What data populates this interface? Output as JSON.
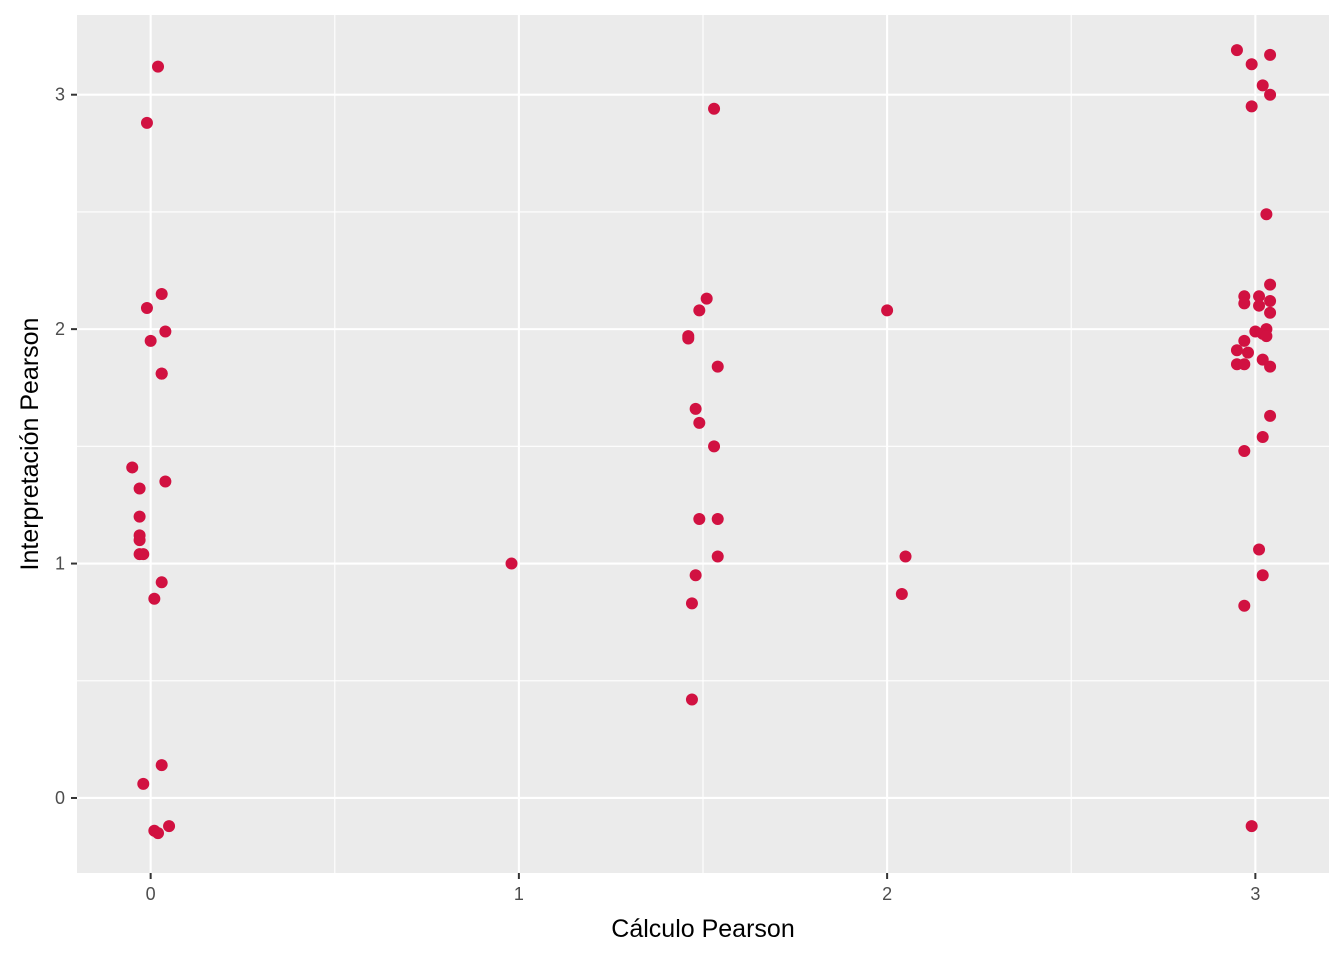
{
  "chart_data": {
    "type": "scatter",
    "title": "",
    "xlabel": "Cálculo Pearson",
    "ylabel": "Interpretación Pearson",
    "xlim": [
      -0.2,
      3.2
    ],
    "ylim": [
      -0.32,
      3.34
    ],
    "x_ticks": [
      0,
      1,
      2,
      3
    ],
    "x_tick_labels": [
      "0",
      "1",
      "2",
      "3"
    ],
    "y_ticks": [
      0,
      1,
      2,
      3
    ],
    "y_tick_labels": [
      "0",
      "1",
      "2",
      "3"
    ],
    "grid": true,
    "point_color": "#D11141",
    "panel_background": "#EBEBEB",
    "grid_color": "#FFFFFF",
    "points": [
      {
        "x": 0.02,
        "y": 3.12
      },
      {
        "x": -0.01,
        "y": 2.88
      },
      {
        "x": 0.03,
        "y": 2.15
      },
      {
        "x": -0.01,
        "y": 2.09
      },
      {
        "x": 0.04,
        "y": 1.99
      },
      {
        "x": 0.0,
        "y": 1.95
      },
      {
        "x": 0.03,
        "y": 1.81
      },
      {
        "x": 0.03,
        "y": 1.81
      },
      {
        "x": -0.05,
        "y": 1.41
      },
      {
        "x": 0.04,
        "y": 1.35
      },
      {
        "x": -0.03,
        "y": 1.32
      },
      {
        "x": -0.03,
        "y": 1.2
      },
      {
        "x": -0.03,
        "y": 1.12
      },
      {
        "x": -0.03,
        "y": 1.1
      },
      {
        "x": -0.03,
        "y": 1.04
      },
      {
        "x": -0.02,
        "y": 1.04
      },
      {
        "x": 0.03,
        "y": 0.92
      },
      {
        "x": 0.01,
        "y": 0.85
      },
      {
        "x": 0.03,
        "y": 0.14
      },
      {
        "x": -0.02,
        "y": 0.06
      },
      {
        "x": 0.05,
        "y": -0.12
      },
      {
        "x": 0.01,
        "y": -0.14
      },
      {
        "x": 0.02,
        "y": -0.15
      },
      {
        "x": 0.98,
        "y": 1.0
      },
      {
        "x": 1.53,
        "y": 2.94
      },
      {
        "x": 1.51,
        "y": 2.13
      },
      {
        "x": 1.49,
        "y": 2.08
      },
      {
        "x": 1.46,
        "y": 1.97
      },
      {
        "x": 1.46,
        "y": 1.96
      },
      {
        "x": 1.54,
        "y": 1.84
      },
      {
        "x": 1.48,
        "y": 1.66
      },
      {
        "x": 1.49,
        "y": 1.6
      },
      {
        "x": 1.53,
        "y": 1.5
      },
      {
        "x": 1.49,
        "y": 1.19
      },
      {
        "x": 1.54,
        "y": 1.19
      },
      {
        "x": 1.54,
        "y": 1.03
      },
      {
        "x": 1.48,
        "y": 0.95
      },
      {
        "x": 1.47,
        "y": 0.83
      },
      {
        "x": 1.47,
        "y": 0.42
      },
      {
        "x": 2.0,
        "y": 2.08
      },
      {
        "x": 2.05,
        "y": 1.03
      },
      {
        "x": 2.04,
        "y": 0.87
      },
      {
        "x": 2.95,
        "y": 3.19
      },
      {
        "x": 3.04,
        "y": 3.17
      },
      {
        "x": 2.99,
        "y": 3.13
      },
      {
        "x": 3.02,
        "y": 3.04
      },
      {
        "x": 3.04,
        "y": 3.0
      },
      {
        "x": 2.99,
        "y": 2.95
      },
      {
        "x": 3.03,
        "y": 2.49
      },
      {
        "x": 3.04,
        "y": 2.19
      },
      {
        "x": 2.97,
        "y": 2.14
      },
      {
        "x": 3.01,
        "y": 2.14
      },
      {
        "x": 3.04,
        "y": 2.12
      },
      {
        "x": 2.97,
        "y": 2.11
      },
      {
        "x": 3.01,
        "y": 2.1
      },
      {
        "x": 3.04,
        "y": 2.07
      },
      {
        "x": 3.03,
        "y": 2.0
      },
      {
        "x": 3.0,
        "y": 1.99
      },
      {
        "x": 3.02,
        "y": 1.98
      },
      {
        "x": 3.03,
        "y": 1.97
      },
      {
        "x": 2.97,
        "y": 1.95
      },
      {
        "x": 2.95,
        "y": 1.91
      },
      {
        "x": 2.98,
        "y": 1.9
      },
      {
        "x": 3.02,
        "y": 1.87
      },
      {
        "x": 2.95,
        "y": 1.85
      },
      {
        "x": 2.97,
        "y": 1.85
      },
      {
        "x": 3.04,
        "y": 1.84
      },
      {
        "x": 3.04,
        "y": 1.63
      },
      {
        "x": 3.02,
        "y": 1.54
      },
      {
        "x": 2.97,
        "y": 1.48
      },
      {
        "x": 3.01,
        "y": 1.06
      },
      {
        "x": 3.02,
        "y": 0.95
      },
      {
        "x": 2.97,
        "y": 0.82
      },
      {
        "x": 2.99,
        "y": -0.12
      }
    ]
  }
}
